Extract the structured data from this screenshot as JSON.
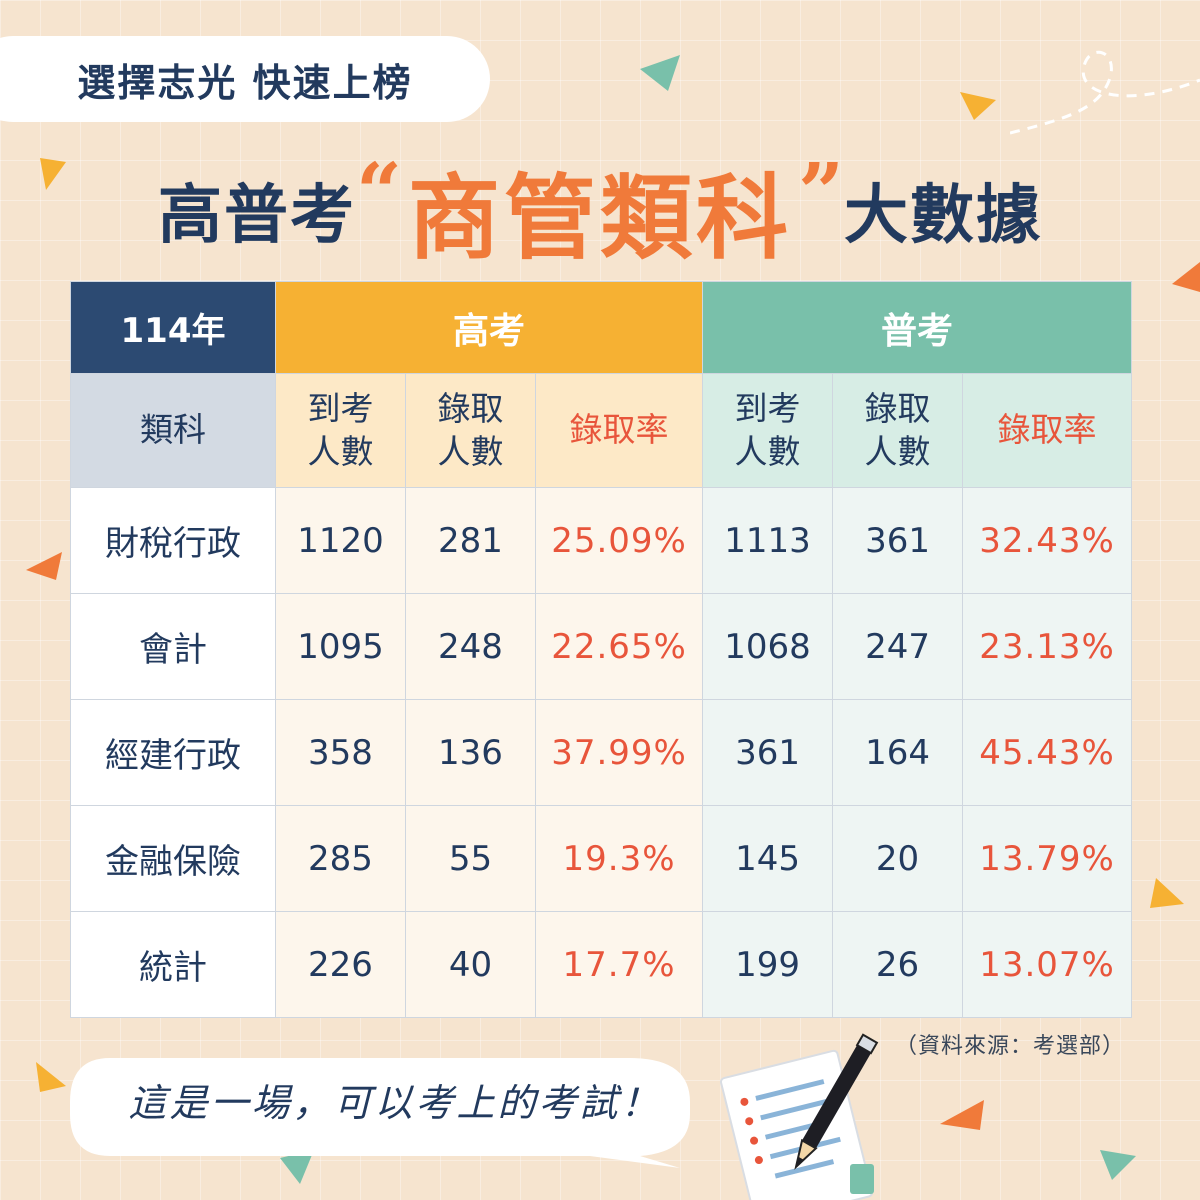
{
  "tagline": "選擇志光 快速上榜",
  "title": {
    "prefix": "高普考",
    "quote_open": "“",
    "highlight": "商管類科",
    "quote_close": "”",
    "suffix": "大數據"
  },
  "table": {
    "year_label": "114年",
    "group_high": "高考",
    "group_normal": "普考",
    "category_header": "類科",
    "col_attend": [
      "到考",
      "人數"
    ],
    "col_admit": [
      "錄取",
      "人數"
    ],
    "col_rate": "錄取率",
    "rows": [
      {
        "category": "財稅行政",
        "h_attend": "1120",
        "h_admit": "281",
        "h_rate": "25.09%",
        "n_attend": "1113",
        "n_admit": "361",
        "n_rate": "32.43%"
      },
      {
        "category": "會計",
        "h_attend": "1095",
        "h_admit": "248",
        "h_rate": "22.65%",
        "n_attend": "1068",
        "n_admit": "247",
        "n_rate": "23.13%"
      },
      {
        "category": "經建行政",
        "h_attend": "358",
        "h_admit": "136",
        "h_rate": "37.99%",
        "n_attend": "361",
        "n_admit": "164",
        "n_rate": "45.43%"
      },
      {
        "category": "金融保險",
        "h_attend": "285",
        "h_admit": "55",
        "h_rate": "19.3%",
        "n_attend": "145",
        "n_admit": "20",
        "n_rate": "13.79%"
      },
      {
        "category": "統計",
        "h_attend": "226",
        "h_admit": "40",
        "h_rate": "17.7%",
        "n_attend": "199",
        "n_admit": "26",
        "n_rate": "13.07%"
      }
    ]
  },
  "source": "（資料來源：考選部）",
  "bubble_text": "這是一場，可以考上的考試！",
  "colors": {
    "navy": "#223a5e",
    "orange": "#f07a3a",
    "gold": "#f6b133",
    "teal": "#79c0aa",
    "rate_red": "#e8553b"
  },
  "icons": [
    "triangle-decoration",
    "dashed-loop-decoration",
    "exam-paper-icon",
    "pencil-icon"
  ]
}
